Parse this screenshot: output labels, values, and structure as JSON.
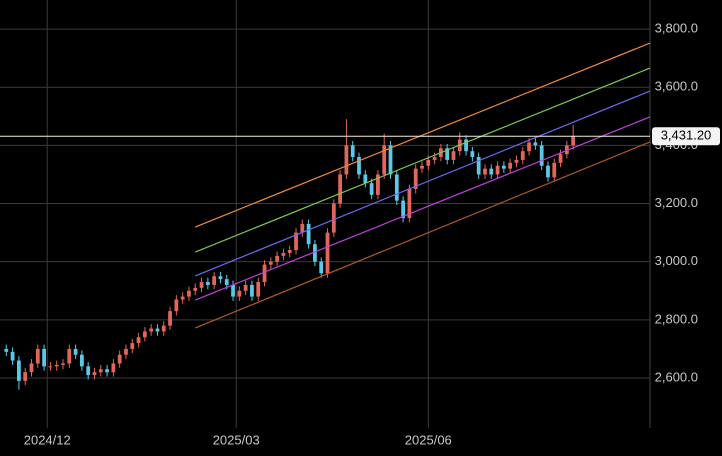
{
  "chart_data": {
    "type": "candlestick",
    "up_color": "#e0675a",
    "down_color": "#5bc8e8",
    "xlim": [
      -1,
      102.2
    ],
    "xticks": [
      {
        "value": 6.5,
        "label": "2024/12"
      },
      {
        "value": 36.5,
        "label": "2025/03"
      },
      {
        "value": 67,
        "label": "2025/06"
      }
    ],
    "ylim": [
      2428,
      3900
    ],
    "yticks": [
      {
        "value": 2600,
        "label": "2,600.0"
      },
      {
        "value": 2800,
        "label": "2,800.0"
      },
      {
        "value": 3000,
        "label": "3,000.0"
      },
      {
        "value": 3200,
        "label": "3,200.0"
      },
      {
        "value": 3400,
        "label": "3,400.0"
      },
      {
        "value": 3600,
        "label": "3,600.0"
      },
      {
        "value": 3800,
        "label": "3,800.0"
      }
    ],
    "grid": true,
    "open": [
      2700,
      2690,
      2660,
      2590,
      2620,
      2650,
      2700,
      2640,
      2640,
      2645,
      2650,
      2700,
      2680,
      2640,
      2610,
      2620,
      2630,
      2620,
      2650,
      2680,
      2700,
      2720,
      2740,
      2760,
      2770,
      2760,
      2780,
      2830,
      2870,
      2880,
      2900,
      2910,
      2930,
      2920,
      2950,
      2940,
      2920,
      2880,
      2900,
      2920,
      2880,
      2930,
      2990,
      3000,
      3020,
      3030,
      3040,
      3100,
      3130,
      3060,
      3000,
      2960,
      3100,
      3200,
      3300,
      3400,
      3360,
      3300,
      3270,
      3230,
      3300,
      3400,
      3300,
      3210,
      3150,
      3250,
      3320,
      3330,
      3350,
      3360,
      3390,
      3350,
      3380,
      3420,
      3380,
      3360,
      3300,
      3320,
      3300,
      3330,
      3320,
      3340,
      3350,
      3380,
      3410,
      3400,
      3330,
      3290,
      3340,
      3370,
      3400
    ],
    "high": [
      2715,
      2705,
      2675,
      2635,
      2665,
      2715,
      2715,
      2655,
      2660,
      2665,
      2715,
      2715,
      2695,
      2655,
      2635,
      2645,
      2645,
      2665,
      2695,
      2715,
      2735,
      2755,
      2775,
      2785,
      2785,
      2795,
      2845,
      2885,
      2895,
      2915,
      2925,
      2945,
      2945,
      2965,
      2965,
      2955,
      2935,
      2915,
      2935,
      2935,
      2945,
      3005,
      3015,
      3035,
      3045,
      3055,
      3115,
      3145,
      3145,
      3075,
      3015,
      3115,
      3215,
      3315,
      3490,
      3415,
      3375,
      3315,
      3285,
      3315,
      3440,
      3415,
      3315,
      3225,
      3265,
      3335,
      3345,
      3365,
      3375,
      3405,
      3405,
      3395,
      3445,
      3435,
      3395,
      3375,
      3335,
      3335,
      3345,
      3345,
      3355,
      3365,
      3395,
      3425,
      3425,
      3415,
      3345,
      3355,
      3385,
      3415,
      3470
    ],
    "low": [
      2675,
      2645,
      2560,
      2575,
      2605,
      2635,
      2625,
      2625,
      2625,
      2630,
      2635,
      2665,
      2625,
      2595,
      2595,
      2605,
      2605,
      2605,
      2635,
      2665,
      2685,
      2705,
      2725,
      2745,
      2745,
      2745,
      2765,
      2815,
      2855,
      2865,
      2885,
      2895,
      2905,
      2905,
      2925,
      2905,
      2865,
      2865,
      2885,
      2865,
      2865,
      2915,
      2975,
      2985,
      3005,
      3015,
      3025,
      3085,
      3045,
      2985,
      2945,
      2945,
      3085,
      3185,
      3285,
      3345,
      3285,
      3255,
      3215,
      3215,
      3285,
      3285,
      3195,
      3135,
      3135,
      3235,
      3305,
      3315,
      3335,
      3345,
      3335,
      3335,
      3365,
      3365,
      3345,
      3285,
      3285,
      3285,
      3285,
      3305,
      3305,
      3325,
      3335,
      3365,
      3385,
      3315,
      3275,
      3275,
      3325,
      3355,
      3385
    ],
    "close": [
      2690,
      2660,
      2590,
      2620,
      2650,
      2700,
      2640,
      2640,
      2645,
      2650,
      2700,
      2680,
      2640,
      2610,
      2620,
      2630,
      2620,
      2650,
      2680,
      2700,
      2720,
      2740,
      2760,
      2770,
      2760,
      2780,
      2830,
      2870,
      2880,
      2900,
      2910,
      2930,
      2920,
      2950,
      2940,
      2920,
      2880,
      2900,
      2920,
      2880,
      2930,
      2990,
      3000,
      3020,
      3030,
      3040,
      3100,
      3130,
      3060,
      3000,
      2960,
      3100,
      3200,
      3300,
      3400,
      3360,
      3300,
      3270,
      3230,
      3300,
      3400,
      3300,
      3210,
      3150,
      3250,
      3320,
      3330,
      3350,
      3360,
      3390,
      3350,
      3380,
      3420,
      3380,
      3360,
      3300,
      3320,
      3300,
      3330,
      3320,
      3340,
      3350,
      3380,
      3410,
      3400,
      3330,
      3290,
      3340,
      3370,
      3400,
      3431.2
    ],
    "channel_lines": [
      {
        "color": "#f08a3c",
        "x": [
          30,
          102.2
        ],
        "values": [
          3119,
          3752
        ]
      },
      {
        "color": "#7ec850",
        "x": [
          30,
          102.2
        ],
        "values": [
          3033,
          3666
        ]
      },
      {
        "color": "#6a6af0",
        "x": [
          30,
          102.2
        ],
        "values": [
          2951,
          3587
        ]
      },
      {
        "color": "#c040e0",
        "x": [
          30,
          102.2
        ],
        "values": [
          2868,
          3498
        ]
      },
      {
        "color": "#b05a28",
        "x": [
          30,
          102.2
        ],
        "values": [
          2772,
          3412
        ]
      }
    ],
    "last_price": {
      "value": 3431.2,
      "label": "3,431.20"
    }
  }
}
